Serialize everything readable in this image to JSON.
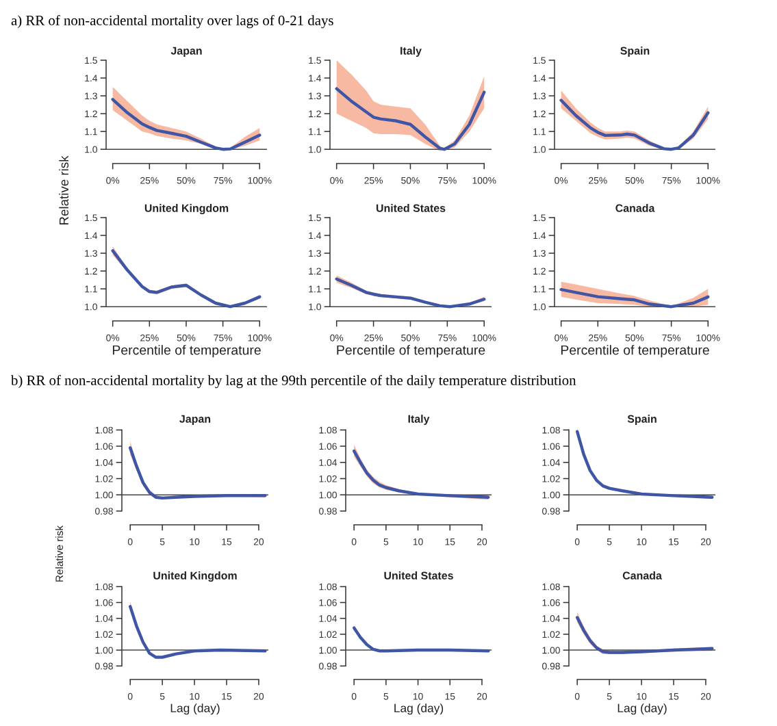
{
  "chart_data": [
    {
      "type": "line",
      "title": "Japan",
      "annotations": [
        "a) RR of non-accidental mortality over lags of 0-21 days"
      ],
      "ylabel": "Relative risk",
      "x": [
        0,
        10,
        20,
        25,
        30,
        40,
        50,
        60,
        70,
        75,
        80,
        90,
        100
      ],
      "series": [
        {
          "color": "#3f55a5",
          "values": [
            1.28,
            1.205,
            1.143,
            1.123,
            1.106,
            1.09,
            1.073,
            1.04,
            1.008,
            1.0,
            1.002,
            1.04,
            1.079
          ],
          "lower": [
            1.22,
            1.16,
            1.1,
            1.09,
            1.075,
            1.06,
            1.05,
            1.03,
            1.0,
            0.998,
            0.998,
            1.02,
            1.05
          ],
          "upper": [
            1.35,
            1.27,
            1.19,
            1.16,
            1.14,
            1.12,
            1.1,
            1.06,
            1.015,
            1.004,
            1.008,
            1.07,
            1.12
          ]
        }
      ],
      "xlim": [
        -4.5,
        105
      ],
      "ylim": [
        0.92,
        1.5
      ],
      "xticks": [
        {
          "value": 0,
          "label": "0%"
        },
        {
          "value": 25,
          "label": "25%"
        },
        {
          "value": 50,
          "label": "50%"
        },
        {
          "value": 75,
          "label": "75%"
        },
        {
          "value": 100,
          "label": "100%"
        }
      ],
      "yticks": [
        {
          "value": 1.0,
          "label": "1.0"
        },
        {
          "value": 1.1,
          "label": "1.1"
        },
        {
          "value": 1.2,
          "label": "1.2"
        },
        {
          "value": 1.3,
          "label": "1.3"
        },
        {
          "value": 1.4,
          "label": "1.4"
        },
        {
          "value": 1.5,
          "label": "1.5"
        }
      ],
      "ref_lines": [
        {
          "axis": "y",
          "value": 1.0,
          "color": "#444444"
        }
      ]
    },
    {
      "type": "line",
      "title": "Italy",
      "x": [
        0,
        10,
        20,
        25,
        30,
        40,
        50,
        60,
        70,
        73,
        80,
        90,
        100
      ],
      "series": [
        {
          "color": "#3f55a5",
          "values": [
            1.34,
            1.27,
            1.21,
            1.18,
            1.17,
            1.16,
            1.14,
            1.07,
            1.005,
            1.0,
            1.03,
            1.14,
            1.32
          ],
          "lower": [
            1.2,
            1.16,
            1.12,
            1.09,
            1.085,
            1.085,
            1.08,
            1.03,
            0.99,
            0.995,
            1.01,
            1.1,
            1.23
          ],
          "upper": [
            1.5,
            1.42,
            1.33,
            1.27,
            1.25,
            1.24,
            1.23,
            1.14,
            1.02,
            1.005,
            1.05,
            1.19,
            1.41
          ]
        }
      ],
      "xlim": [
        -4.5,
        105
      ],
      "ylim": [
        0.92,
        1.5
      ],
      "xticks": [
        {
          "value": 0,
          "label": "0%"
        },
        {
          "value": 25,
          "label": "25%"
        },
        {
          "value": 50,
          "label": "50%"
        },
        {
          "value": 75,
          "label": "75%"
        },
        {
          "value": 100,
          "label": "100%"
        }
      ],
      "yticks": [
        {
          "value": 1.0,
          "label": "1.0"
        },
        {
          "value": 1.1,
          "label": "1.1"
        },
        {
          "value": 1.2,
          "label": "1.2"
        },
        {
          "value": 1.3,
          "label": "1.3"
        },
        {
          "value": 1.4,
          "label": "1.4"
        },
        {
          "value": 1.5,
          "label": "1.5"
        }
      ],
      "ref_lines": [
        {
          "axis": "y",
          "value": 1.0,
          "color": "#444444"
        }
      ]
    },
    {
      "type": "line",
      "title": "Spain",
      "x": [
        0,
        10,
        20,
        25,
        30,
        40,
        45,
        50,
        60,
        70,
        75,
        80,
        90,
        100
      ],
      "series": [
        {
          "color": "#3f55a5",
          "values": [
            1.275,
            1.19,
            1.12,
            1.095,
            1.078,
            1.08,
            1.085,
            1.08,
            1.035,
            1.003,
            1.0,
            1.008,
            1.08,
            1.205
          ],
          "lower": [
            1.23,
            1.16,
            1.09,
            1.07,
            1.055,
            1.06,
            1.065,
            1.06,
            1.02,
            0.998,
            0.998,
            1.0,
            1.06,
            1.17
          ],
          "upper": [
            1.33,
            1.23,
            1.15,
            1.12,
            1.1,
            1.1,
            1.105,
            1.1,
            1.05,
            1.01,
            1.003,
            1.015,
            1.1,
            1.24
          ]
        }
      ],
      "xlim": [
        -4.5,
        105
      ],
      "ylim": [
        0.92,
        1.5
      ],
      "xticks": [
        {
          "value": 0,
          "label": "0%"
        },
        {
          "value": 25,
          "label": "25%"
        },
        {
          "value": 50,
          "label": "50%"
        },
        {
          "value": 75,
          "label": "75%"
        },
        {
          "value": 100,
          "label": "100%"
        }
      ],
      "yticks": [
        {
          "value": 1.0,
          "label": "1.0"
        },
        {
          "value": 1.1,
          "label": "1.1"
        },
        {
          "value": 1.2,
          "label": "1.2"
        },
        {
          "value": 1.3,
          "label": "1.3"
        },
        {
          "value": 1.4,
          "label": "1.4"
        },
        {
          "value": 1.5,
          "label": "1.5"
        }
      ],
      "ref_lines": [
        {
          "axis": "y",
          "value": 1.0,
          "color": "#444444"
        }
      ]
    },
    {
      "type": "line",
      "title": "United Kingdom",
      "xlabel": "Percentile of temperature",
      "x": [
        0,
        10,
        20,
        25,
        30,
        40,
        50,
        60,
        70,
        80,
        90,
        100
      ],
      "series": [
        {
          "color": "#3f55a5",
          "values": [
            1.314,
            1.205,
            1.113,
            1.085,
            1.08,
            1.11,
            1.12,
            1.066,
            1.02,
            1.0,
            1.02,
            1.055
          ],
          "lower": [
            1.29,
            1.195,
            1.103,
            1.075,
            1.07,
            1.1,
            1.11,
            1.058,
            1.013,
            0.998,
            1.013,
            1.045
          ],
          "upper": [
            1.34,
            1.215,
            1.123,
            1.095,
            1.09,
            1.12,
            1.13,
            1.074,
            1.027,
            1.003,
            1.027,
            1.065
          ]
        }
      ],
      "xlim": [
        -4.5,
        105
      ],
      "ylim": [
        0.92,
        1.5
      ],
      "xticks": [
        {
          "value": 0,
          "label": "0%"
        },
        {
          "value": 25,
          "label": "25%"
        },
        {
          "value": 50,
          "label": "50%"
        },
        {
          "value": 75,
          "label": "75%"
        },
        {
          "value": 100,
          "label": "100%"
        }
      ],
      "yticks": [
        {
          "value": 1.0,
          "label": "1.0"
        },
        {
          "value": 1.1,
          "label": "1.1"
        },
        {
          "value": 1.2,
          "label": "1.2"
        },
        {
          "value": 1.3,
          "label": "1.3"
        },
        {
          "value": 1.4,
          "label": "1.4"
        },
        {
          "value": 1.5,
          "label": "1.5"
        }
      ],
      "ref_lines": [
        {
          "axis": "y",
          "value": 1.0,
          "color": "#444444"
        }
      ]
    },
    {
      "type": "line",
      "title": "United States",
      "xlabel": "Percentile of temperature",
      "x": [
        0,
        10,
        20,
        25,
        30,
        40,
        50,
        60,
        70,
        77,
        90,
        100
      ],
      "series": [
        {
          "color": "#3f55a5",
          "values": [
            1.155,
            1.12,
            1.08,
            1.07,
            1.062,
            1.055,
            1.048,
            1.025,
            1.005,
            1.0,
            1.015,
            1.042
          ],
          "lower": [
            1.135,
            1.105,
            1.07,
            1.06,
            1.054,
            1.047,
            1.04,
            1.018,
            1.0,
            0.998,
            1.008,
            1.03
          ],
          "upper": [
            1.175,
            1.135,
            1.09,
            1.08,
            1.07,
            1.063,
            1.056,
            1.032,
            1.01,
            1.003,
            1.022,
            1.055
          ]
        }
      ],
      "xlim": [
        -4.5,
        105
      ],
      "ylim": [
        0.92,
        1.5
      ],
      "xticks": [
        {
          "value": 0,
          "label": "0%"
        },
        {
          "value": 25,
          "label": "25%"
        },
        {
          "value": 50,
          "label": "50%"
        },
        {
          "value": 75,
          "label": "75%"
        },
        {
          "value": 100,
          "label": "100%"
        }
      ],
      "yticks": [
        {
          "value": 1.0,
          "label": "1.0"
        },
        {
          "value": 1.1,
          "label": "1.1"
        },
        {
          "value": 1.2,
          "label": "1.2"
        },
        {
          "value": 1.3,
          "label": "1.3"
        },
        {
          "value": 1.4,
          "label": "1.4"
        },
        {
          "value": 1.5,
          "label": "1.5"
        }
      ],
      "ref_lines": [
        {
          "axis": "y",
          "value": 1.0,
          "color": "#444444"
        }
      ]
    },
    {
      "type": "line",
      "title": "Canada",
      "xlabel": "Percentile of temperature",
      "x": [
        0,
        10,
        25,
        40,
        50,
        60,
        75,
        90,
        100
      ],
      "series": [
        {
          "color": "#3f55a5",
          "values": [
            1.096,
            1.08,
            1.056,
            1.045,
            1.038,
            1.015,
            1.0,
            1.02,
            1.055
          ],
          "lower": [
            1.055,
            1.04,
            1.02,
            1.015,
            1.01,
            1.0,
            0.998,
            1.0,
            1.01
          ],
          "upper": [
            1.14,
            1.125,
            1.1,
            1.075,
            1.06,
            1.035,
            1.003,
            1.05,
            1.1
          ]
        }
      ],
      "xlim": [
        -4.5,
        105
      ],
      "ylim": [
        0.92,
        1.5
      ],
      "xticks": [
        {
          "value": 0,
          "label": "0%"
        },
        {
          "value": 25,
          "label": "25%"
        },
        {
          "value": 50,
          "label": "50%"
        },
        {
          "value": 75,
          "label": "75%"
        },
        {
          "value": 100,
          "label": "100%"
        }
      ],
      "yticks": [
        {
          "value": 1.0,
          "label": "1.0"
        },
        {
          "value": 1.1,
          "label": "1.1"
        },
        {
          "value": 1.2,
          "label": "1.2"
        },
        {
          "value": 1.3,
          "label": "1.3"
        },
        {
          "value": 1.4,
          "label": "1.4"
        },
        {
          "value": 1.5,
          "label": "1.5"
        }
      ],
      "ref_lines": [
        {
          "axis": "y",
          "value": 1.0,
          "color": "#444444"
        }
      ]
    },
    {
      "type": "line",
      "title": "Japan",
      "annotations": [
        "b) RR of non-accidental mortality by lag at the 99th percentile of the daily temperature distribution"
      ],
      "ylabel": "Relative risk",
      "x": [
        0,
        1,
        2,
        3,
        4,
        5,
        7,
        10,
        15,
        21
      ],
      "series": [
        {
          "color": "#3f55a5",
          "values": [
            1.058,
            1.035,
            1.015,
            1.003,
            0.997,
            0.996,
            0.997,
            0.998,
            0.999,
            0.999
          ],
          "lower": [
            1.05,
            1.03,
            1.011,
            1.0,
            0.995,
            0.995,
            0.996,
            0.997,
            0.998,
            0.997
          ],
          "upper": [
            1.066,
            1.04,
            1.019,
            1.006,
            0.999,
            0.998,
            0.998,
            0.999,
            1.0,
            1.001
          ]
        }
      ],
      "xlim": [
        -1.3,
        21.5
      ],
      "ylim": [
        0.963,
        1.082
      ],
      "xticks": [
        0,
        5,
        10,
        15,
        20
      ],
      "yticks": [
        {
          "value": 0.98,
          "label": "0.98"
        },
        {
          "value": 1.0,
          "label": "1.00"
        },
        {
          "value": 1.02,
          "label": "1.02"
        },
        {
          "value": 1.04,
          "label": "1.04"
        },
        {
          "value": 1.06,
          "label": "1.06"
        },
        {
          "value": 1.08,
          "label": "1.08"
        }
      ],
      "ref_lines": [
        {
          "axis": "y",
          "value": 1.0,
          "color": "#444444"
        }
      ]
    },
    {
      "type": "line",
      "title": "Italy",
      "x": [
        0,
        1,
        2,
        3,
        4,
        5,
        7,
        10,
        15,
        21
      ],
      "series": [
        {
          "color": "#3f55a5",
          "values": [
            1.054,
            1.04,
            1.027,
            1.018,
            1.012,
            1.009,
            1.005,
            1.001,
            0.999,
            0.997
          ],
          "lower": [
            1.047,
            1.035,
            1.023,
            1.014,
            1.009,
            1.006,
            1.003,
            1.0,
            0.997,
            0.994
          ],
          "upper": [
            1.062,
            1.045,
            1.031,
            1.022,
            1.016,
            1.012,
            1.007,
            1.002,
            1.0,
            0.999
          ]
        }
      ],
      "xlim": [
        -1.3,
        21.5
      ],
      "ylim": [
        0.963,
        1.082
      ],
      "xticks": [
        0,
        5,
        10,
        15,
        20
      ],
      "yticks": [
        {
          "value": 0.98,
          "label": "0.98"
        },
        {
          "value": 1.0,
          "label": "1.00"
        },
        {
          "value": 1.02,
          "label": "1.02"
        },
        {
          "value": 1.04,
          "label": "1.04"
        },
        {
          "value": 1.06,
          "label": "1.06"
        },
        {
          "value": 1.08,
          "label": "1.08"
        }
      ],
      "ref_lines": [
        {
          "axis": "y",
          "value": 1.0,
          "color": "#444444"
        }
      ]
    },
    {
      "type": "line",
      "title": "Spain",
      "x": [
        0,
        1,
        2,
        3,
        4,
        5,
        7,
        10,
        15,
        21
      ],
      "series": [
        {
          "color": "#3f55a5",
          "values": [
            1.078,
            1.05,
            1.03,
            1.018,
            1.011,
            1.008,
            1.005,
            1.001,
            0.999,
            0.997
          ],
          "lower": [
            1.074,
            1.047,
            1.028,
            1.016,
            1.009,
            1.006,
            1.004,
            1.0,
            0.998,
            0.995
          ],
          "upper": [
            1.082,
            1.053,
            1.032,
            1.02,
            1.013,
            1.01,
            1.006,
            1.002,
            1.0,
            0.998
          ]
        }
      ],
      "xlim": [
        -1.3,
        21.5
      ],
      "ylim": [
        0.963,
        1.082
      ],
      "xticks": [
        0,
        5,
        10,
        15,
        20
      ],
      "yticks": [
        {
          "value": 0.98,
          "label": "0.98"
        },
        {
          "value": 1.0,
          "label": "1.00"
        },
        {
          "value": 1.02,
          "label": "1.02"
        },
        {
          "value": 1.04,
          "label": "1.04"
        },
        {
          "value": 1.06,
          "label": "1.06"
        },
        {
          "value": 1.08,
          "label": "1.08"
        }
      ],
      "ref_lines": [
        {
          "axis": "y",
          "value": 1.0,
          "color": "#444444"
        }
      ]
    },
    {
      "type": "line",
      "title": "United Kingdom",
      "xlabel": "Lag (day)",
      "x": [
        0,
        1,
        2,
        3,
        4,
        5,
        7,
        10,
        14,
        21
      ],
      "series": [
        {
          "color": "#3f55a5",
          "values": [
            1.055,
            1.03,
            1.01,
            0.996,
            0.991,
            0.991,
            0.995,
            0.999,
            1.0,
            0.999
          ],
          "lower": [
            1.05,
            1.027,
            1.008,
            0.995,
            0.99,
            0.99,
            0.994,
            0.998,
            0.999,
            0.998
          ],
          "upper": [
            1.061,
            1.033,
            1.012,
            0.997,
            0.992,
            0.992,
            0.996,
            1.0,
            1.001,
            1.0
          ]
        }
      ],
      "xlim": [
        -1.3,
        21.5
      ],
      "ylim": [
        0.963,
        1.082
      ],
      "xticks": [
        0,
        5,
        10,
        15,
        20
      ],
      "yticks": [
        {
          "value": 0.98,
          "label": "0.98"
        },
        {
          "value": 1.0,
          "label": "1.00"
        },
        {
          "value": 1.02,
          "label": "1.02"
        },
        {
          "value": 1.04,
          "label": "1.04"
        },
        {
          "value": 1.06,
          "label": "1.06"
        },
        {
          "value": 1.08,
          "label": "1.08"
        }
      ],
      "ref_lines": [
        {
          "axis": "y",
          "value": 1.0,
          "color": "#444444"
        }
      ]
    },
    {
      "type": "line",
      "title": "United States",
      "xlabel": "Lag (day)",
      "x": [
        0,
        1,
        2,
        3,
        4,
        5,
        10,
        15,
        21
      ],
      "series": [
        {
          "color": "#3f55a5",
          "values": [
            1.028,
            1.016,
            1.007,
            1.001,
            0.999,
            0.999,
            1.0,
            1.0,
            0.999
          ],
          "lower": [
            1.025,
            1.014,
            1.006,
            1.0,
            0.998,
            0.998,
            0.999,
            0.999,
            0.998
          ],
          "upper": [
            1.031,
            1.018,
            1.008,
            1.002,
            1.0,
            1.0,
            1.001,
            1.001,
            1.0
          ]
        }
      ],
      "xlim": [
        -1.3,
        21.5
      ],
      "ylim": [
        0.963,
        1.082
      ],
      "xticks": [
        0,
        5,
        10,
        15,
        20
      ],
      "yticks": [
        {
          "value": 0.98,
          "label": "0.98"
        },
        {
          "value": 1.0,
          "label": "1.00"
        },
        {
          "value": 1.02,
          "label": "1.02"
        },
        {
          "value": 1.04,
          "label": "1.04"
        },
        {
          "value": 1.06,
          "label": "1.06"
        },
        {
          "value": 1.08,
          "label": "1.08"
        }
      ],
      "ref_lines": [
        {
          "axis": "y",
          "value": 1.0,
          "color": "#444444"
        }
      ]
    },
    {
      "type": "line",
      "title": "Canada",
      "xlabel": "Lag (day)",
      "x": [
        0,
        1,
        2,
        3,
        4,
        5,
        7,
        10,
        15,
        21
      ],
      "series": [
        {
          "color": "#3f55a5",
          "values": [
            1.041,
            1.025,
            1.012,
            1.003,
            0.998,
            0.997,
            0.997,
            0.998,
            1.0,
            1.002
          ],
          "lower": [
            1.035,
            1.02,
            1.008,
            1.0,
            0.995,
            0.995,
            0.995,
            0.997,
            0.998,
            0.999
          ],
          "upper": [
            1.048,
            1.03,
            1.016,
            1.006,
            1.001,
            0.999,
            0.999,
            0.999,
            1.002,
            1.004
          ]
        }
      ],
      "xlim": [
        -1.3,
        21.5
      ],
      "ylim": [
        0.963,
        1.082
      ],
      "xticks": [
        0,
        5,
        10,
        15,
        20
      ],
      "yticks": [
        {
          "value": 0.98,
          "label": "0.98"
        },
        {
          "value": 1.0,
          "label": "1.00"
        },
        {
          "value": 1.02,
          "label": "1.02"
        },
        {
          "value": 1.04,
          "label": "1.04"
        },
        {
          "value": 1.06,
          "label": "1.06"
        },
        {
          "value": 1.08,
          "label": "1.08"
        }
      ],
      "ref_lines": [
        {
          "axis": "y",
          "value": 1.0,
          "color": "#444444"
        }
      ]
    }
  ]
}
